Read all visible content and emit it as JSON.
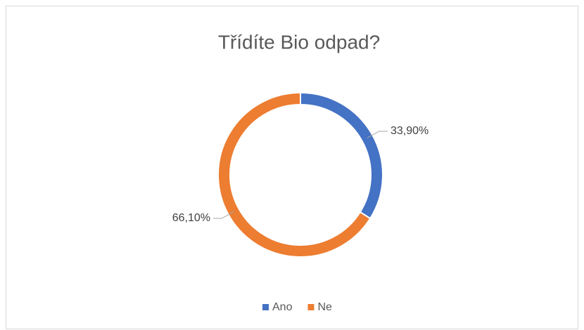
{
  "chart_data": {
    "type": "donut",
    "title": "Třídíte Bio odpad?",
    "categories": [
      "Ano",
      "Ne"
    ],
    "values": [
      33.9,
      66.1
    ],
    "value_labels": [
      "33,90%",
      "66,10%"
    ],
    "colors": [
      "#4472c4",
      "#ed7d31"
    ],
    "legend": "bottom"
  }
}
